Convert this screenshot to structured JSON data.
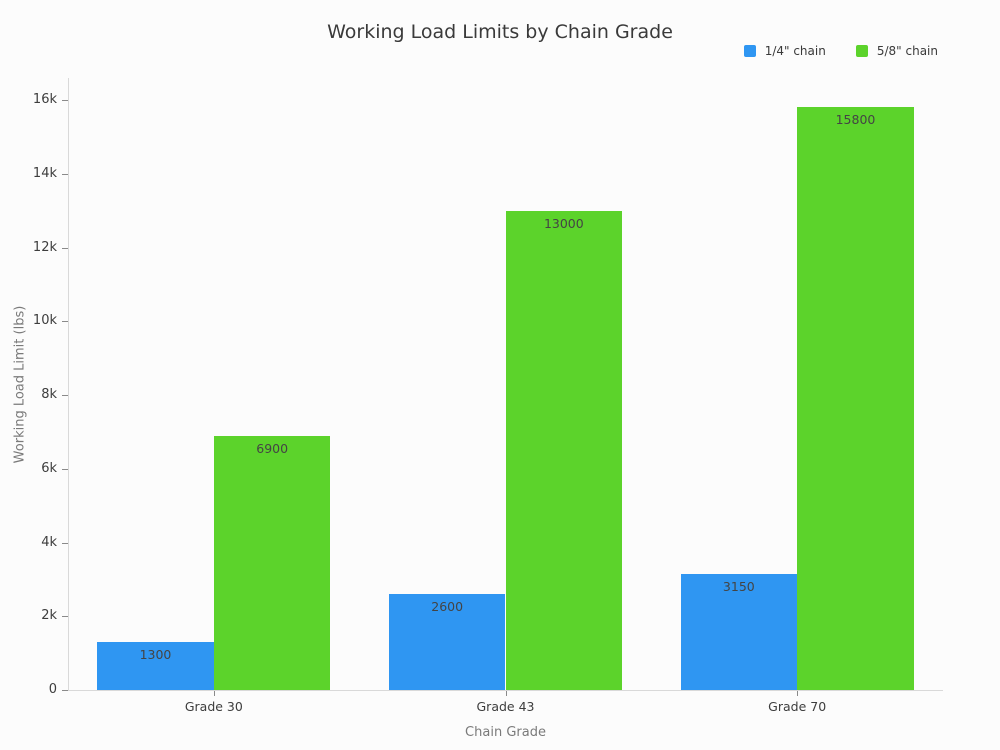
{
  "chart_data": {
    "type": "bar",
    "title": "Working Load Limits by Chain Grade",
    "xlabel": "Chain Grade",
    "ylabel": "Working Load Limit (lbs)",
    "categories": [
      "Grade 30",
      "Grade 43",
      "Grade 70"
    ],
    "series": [
      {
        "name": "1/4\" chain",
        "color": "#2f96f2",
        "values": [
          1300,
          2600,
          3150
        ]
      },
      {
        "name": "5/8\" chain",
        "color": "#5cd32b",
        "values": [
          6900,
          13000,
          15800
        ]
      }
    ],
    "bar_value_labels_shown": true,
    "ylim": [
      0,
      16000
    ],
    "yticks": [
      {
        "value": 0,
        "label": "0"
      },
      {
        "value": 2000,
        "label": "2k"
      },
      {
        "value": 4000,
        "label": "4k"
      },
      {
        "value": 6000,
        "label": "6k"
      },
      {
        "value": 8000,
        "label": "8k"
      },
      {
        "value": 10000,
        "label": "10k"
      },
      {
        "value": 12000,
        "label": "12k"
      },
      {
        "value": 14000,
        "label": "14k"
      },
      {
        "value": 16000,
        "label": "16k"
      }
    ],
    "legend_position": "top-right",
    "grid": false
  },
  "colors": {
    "background": "#fcfcfc",
    "axis_line": "#d9d9d9",
    "tick_mark": "#8a8a8a",
    "tick_label": "#3d3d3d",
    "axis_title": "#7a7a7a",
    "title": "#3a3a3a",
    "bar_label": "#444444"
  }
}
